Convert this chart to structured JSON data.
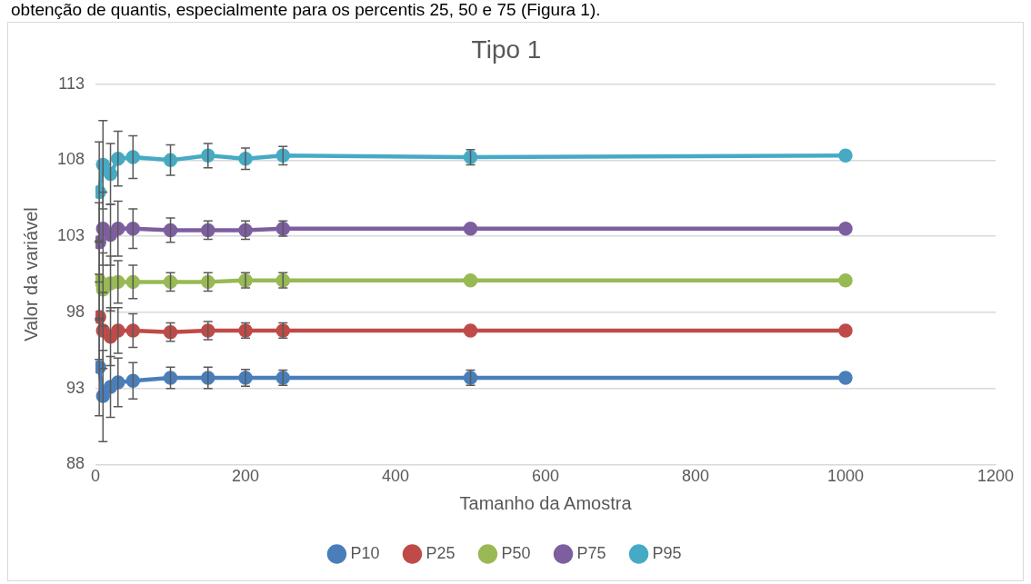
{
  "chart_data": {
    "type": "line",
    "title": "Tipo 1",
    "xlabel": "Tamanho da Amostra",
    "ylabel": "Valor da variável",
    "annotations": [
      "obtenção de quantis, especialmente para os percentis 25, 50 e 75 (Figura 1)."
    ],
    "x": [
      5,
      10,
      20,
      30,
      50,
      100,
      150,
      200,
      250,
      500,
      1000
    ],
    "xlim": [
      0,
      1200
    ],
    "xticks": [
      0,
      200,
      400,
      600,
      800,
      1000,
      1200
    ],
    "ylim": [
      88,
      113
    ],
    "yticks": [
      88,
      93,
      98,
      103,
      108,
      113
    ],
    "grid": "y",
    "legend": "bottom",
    "marker": "circle",
    "series": [
      {
        "name": "P10",
        "color": "#4a7ebb",
        "values": [
          94.4,
          92.5,
          93.1,
          93.4,
          93.5,
          93.7,
          93.7,
          93.7,
          93.7,
          93.7,
          93.7
        ],
        "errors": [
          3.2,
          3.0,
          2.0,
          1.6,
          1.2,
          0.7,
          0.7,
          0.55,
          0.5,
          0.5,
          null
        ]
      },
      {
        "name": "P25",
        "color": "#be4b48",
        "values": [
          97.7,
          96.8,
          96.4,
          96.8,
          96.8,
          96.7,
          96.8,
          96.8,
          96.8,
          96.8,
          96.8
        ],
        "errors": [
          2.8,
          2.5,
          1.9,
          1.5,
          1.1,
          0.6,
          0.6,
          0.5,
          0.5,
          null,
          null
        ]
      },
      {
        "name": "P50",
        "color": "#98b954",
        "values": [
          100.1,
          99.5,
          99.9,
          100.0,
          100.0,
          100.0,
          100.0,
          100.1,
          100.1,
          100.1,
          100.1
        ],
        "errors": [
          2.6,
          2.4,
          1.8,
          1.4,
          1.1,
          0.6,
          0.6,
          0.5,
          0.5,
          null,
          null
        ]
      },
      {
        "name": "P75",
        "color": "#7d5fa0",
        "values": [
          102.6,
          103.5,
          103.1,
          103.5,
          103.5,
          103.4,
          103.4,
          103.4,
          103.5,
          103.5,
          103.5
        ],
        "errors": [
          2.6,
          2.4,
          2.0,
          1.8,
          1.3,
          0.8,
          0.6,
          0.6,
          0.5,
          null,
          null
        ]
      },
      {
        "name": "P95",
        "color": "#46aac5",
        "values": [
          105.9,
          107.7,
          107.1,
          108.1,
          108.2,
          108.0,
          108.3,
          108.1,
          108.3,
          108.2,
          108.3
        ],
        "errors": [
          3.3,
          2.9,
          2.0,
          1.8,
          1.4,
          1.0,
          0.8,
          0.7,
          0.6,
          0.5,
          null
        ]
      }
    ]
  }
}
